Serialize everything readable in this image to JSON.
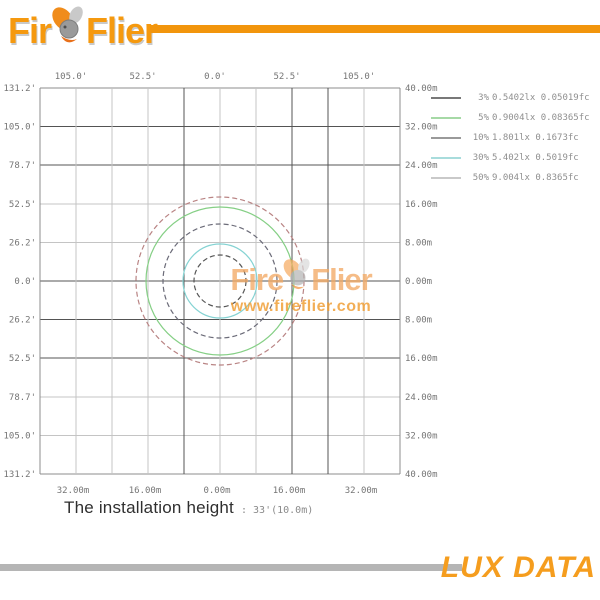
{
  "brand": {
    "logo_left": "Fir",
    "logo_right": "Flier",
    "accent_orange": "#f2950c"
  },
  "watermark": {
    "left": "Fire",
    "right": "Flier",
    "url": "www.fireflier.com"
  },
  "install": {
    "label": "The installation height",
    "separator": ":",
    "value": "33'(10.0m)"
  },
  "footer": {
    "label": "LUX DATA"
  },
  "chart_data": {
    "type": "isolux_contours",
    "description": "Circular isolux light distribution plot with concentric intensity contours",
    "installation_height": "33'(10.0m)",
    "x_axis_top": {
      "unit": "feet",
      "ticks": [
        "105.0'",
        "52.5'",
        "0.0'",
        "52.5'",
        "105.0'"
      ]
    },
    "x_axis_bottom": {
      "unit": "meters",
      "ticks": [
        "32.00m",
        "16.00m",
        "0.00m",
        "16.00m",
        "32.00m"
      ]
    },
    "y_axis_left": {
      "unit": "feet",
      "ticks": [
        "131.2'",
        "105.0'",
        "78.7'",
        "52.5'",
        "26.2'",
        "0.0'",
        "26.2'",
        "52.5'",
        "78.7'",
        "105.0'",
        "131.2'"
      ]
    },
    "y_axis_right": {
      "unit": "meters",
      "ticks": [
        "40.00m",
        "32.00m",
        "24.00m",
        "16.00m",
        "8.00m",
        "0.00m",
        "8.00m",
        "16.00m",
        "24.00m",
        "32.00m",
        "40.00m"
      ]
    },
    "axis_range_m": [
      -40,
      40
    ],
    "grid": {
      "h_shades": [
        "border",
        "dark",
        "dark",
        "light",
        "light",
        "dark",
        "dark",
        "dark",
        "light",
        "light",
        "border"
      ],
      "v_shades": [
        "border",
        "light",
        "light",
        "light",
        "dark",
        "light",
        "light",
        "dark",
        "dark",
        "light",
        "border"
      ],
      "colors": {
        "border": "#8c8c8c",
        "dark": "#545454",
        "light": "#c4c4c4"
      }
    },
    "series": [
      {
        "percent": "3%",
        "lux": "0.5402lx",
        "fc": "0.05019fc",
        "radius_m": 18.7,
        "radius_px": 84,
        "color": "#b98484",
        "legend_color": "#787878",
        "dashed": true
      },
      {
        "percent": "5%",
        "lux": "0.9004lx",
        "fc": "0.08365fc",
        "radius_m": 16.4,
        "radius_px": 74,
        "color": "#85cf85",
        "legend_color": "#a6d9a6",
        "dashed": false
      },
      {
        "percent": "10%",
        "lux": "1.801lx",
        "fc": "0.1673fc",
        "radius_m": 12.7,
        "radius_px": 57,
        "color": "#6b6b78",
        "legend_color": "#9a9a9a",
        "dashed": true
      },
      {
        "percent": "30%",
        "lux": "5.402lx",
        "fc": "0.5019fc",
        "radius_m": 8.2,
        "radius_px": 37,
        "color": "#85d3d3",
        "legend_color": "#a8dcdc",
        "dashed": false
      },
      {
        "percent": "50%",
        "lux": "9.004lx",
        "fc": "0.8365fc",
        "radius_m": 5.8,
        "radius_px": 26,
        "color": "#565656",
        "legend_color": "#c9c9c9",
        "dashed": true
      }
    ]
  }
}
